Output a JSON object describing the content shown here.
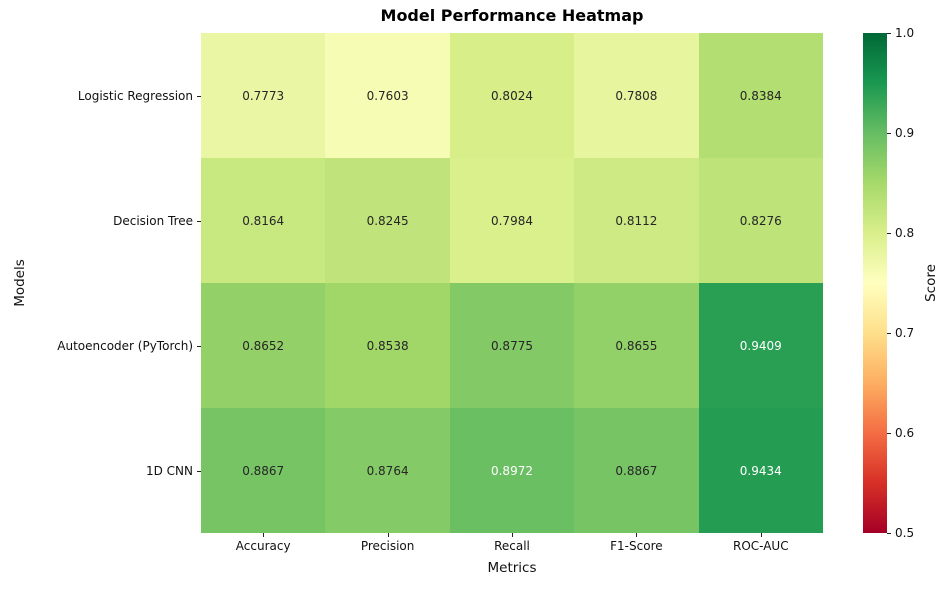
{
  "title": "Model Performance Heatmap",
  "background": "#ffffff",
  "chart_data": {
    "type": "heatmap",
    "title": "Model Performance Heatmap",
    "xlabel": "Metrics",
    "ylabel": "Models",
    "columns": [
      "Accuracy",
      "Precision",
      "Recall",
      "F1-Score",
      "ROC-AUC"
    ],
    "rows": [
      "Logistic Regression",
      "Decision Tree",
      "Autoencoder (PyTorch)",
      "1D CNN"
    ],
    "values": [
      [
        0.7773,
        0.7603,
        0.8024,
        0.7808,
        0.8384
      ],
      [
        0.8164,
        0.8245,
        0.7984,
        0.8112,
        0.8276
      ],
      [
        0.8652,
        0.8538,
        0.8775,
        0.8655,
        0.9409
      ],
      [
        0.8867,
        0.8764,
        0.8972,
        0.8867,
        0.9434
      ]
    ],
    "value_decimals": 4,
    "colormap": {
      "name": "RdYlGn",
      "vmin": 0.5,
      "vmax": 1.0,
      "anchors": [
        "#a50026",
        "#d73027",
        "#f46d43",
        "#fdae61",
        "#fee08b",
        "#ffffbf",
        "#d9ef8b",
        "#a6d96a",
        "#66bd63",
        "#1a9850",
        "#006837"
      ]
    },
    "colorbar": {
      "label": "Score",
      "ticks": [
        "1.0",
        "0.9",
        "0.8",
        "0.7",
        "0.6",
        "0.5"
      ]
    },
    "annotation_colors": {
      "light": "#ffffff",
      "dark": "#262626"
    },
    "grid": false,
    "legend_position": "right-colorbar"
  }
}
